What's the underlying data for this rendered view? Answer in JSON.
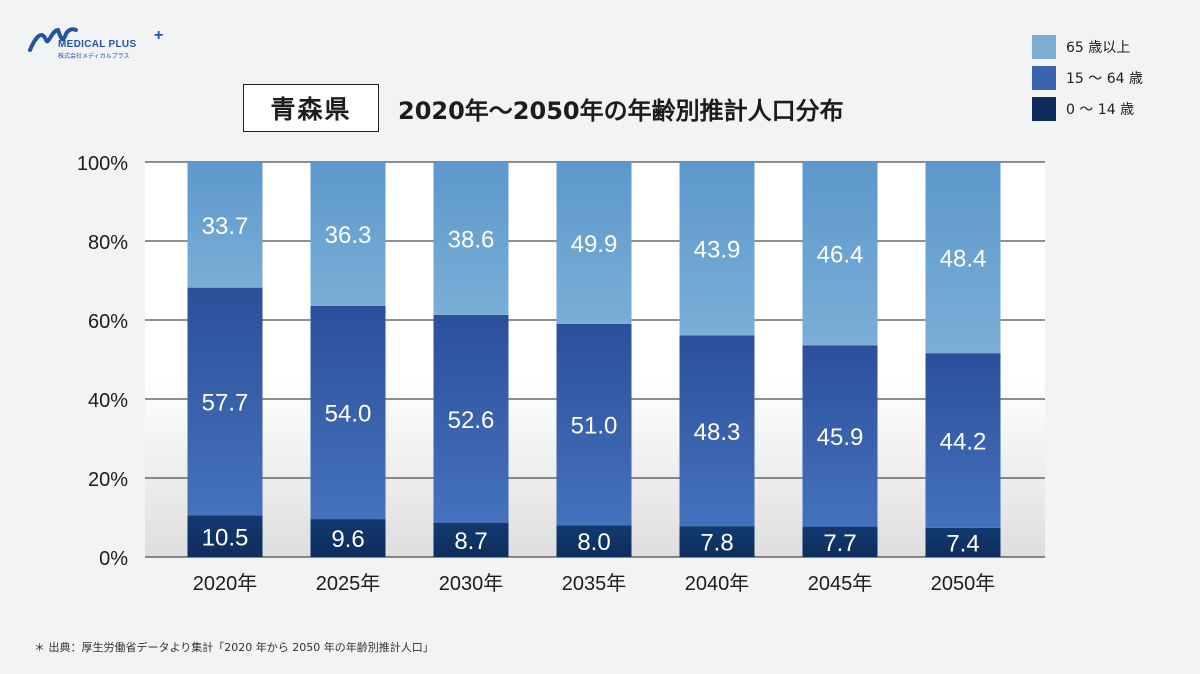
{
  "header": {
    "logo_text": "MEDICAL PLUS",
    "logo_subtext": "株式会社メディカルプラス",
    "logo_plus": "+",
    "prefecture": "青森県",
    "title": "2020年～2050年の年齢別推計人口分布"
  },
  "footnote": "＊ 出典：厚生労働省データより集計「2020 年から 2050 年の年齢別推計人口」",
  "colors": {
    "age_65_plus": "#7aaed6",
    "age_15_64": "#3a62ad",
    "age_0_14": "#0e2d5c",
    "gridline": "#222222",
    "value_label": "#ffffff"
  },
  "chart_data": {
    "type": "bar",
    "stacked": true,
    "categories": [
      "2020年",
      "2025年",
      "2030年",
      "2035年",
      "2040年",
      "2045年",
      "2050年"
    ],
    "series": [
      {
        "name": "0 ～ 14 歳",
        "values": [
          10.5,
          9.6,
          8.7,
          8.0,
          7.8,
          7.7,
          7.4
        ]
      },
      {
        "name": "15 ～ 64 歳",
        "values": [
          57.7,
          54.0,
          52.6,
          51.0,
          48.3,
          45.9,
          44.2
        ]
      },
      {
        "name": "65 歳以上",
        "values": [
          33.7,
          36.3,
          38.6,
          49.9,
          43.9,
          46.4,
          48.4
        ]
      }
    ],
    "legend_order": [
      "65 歳以上",
      "15 ～ 64 歳",
      "0 ～ 14 歳"
    ],
    "y_ticks": [
      "0%",
      "20%",
      "40%",
      "60%",
      "80%",
      "100%"
    ],
    "ylim": [
      0,
      100
    ],
    "grid": true,
    "legend_position": "top-right"
  }
}
